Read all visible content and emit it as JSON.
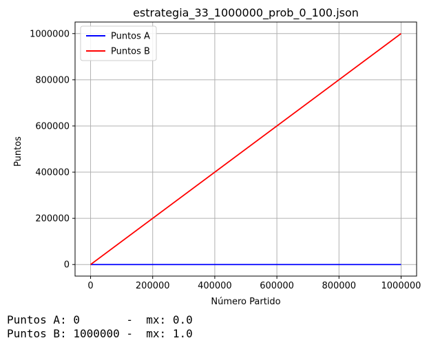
{
  "chart_data": {
    "type": "line",
    "title": "estrategia_33_1000000_prob_0_100.json",
    "xlabel": "Número Partido",
    "ylabel": "Puntos",
    "xlim": [
      -50000,
      1050000
    ],
    "ylim": [
      -50000,
      1050000
    ],
    "xticks": [
      0,
      200000,
      400000,
      600000,
      800000,
      1000000
    ],
    "yticks": [
      0,
      200000,
      400000,
      600000,
      800000,
      1000000
    ],
    "grid": true,
    "legend_position": "top-left",
    "series": [
      {
        "name": "Puntos A",
        "color": "#0000ff",
        "x": [
          0,
          1000000
        ],
        "y": [
          0,
          0
        ]
      },
      {
        "name": "Puntos B",
        "color": "#ff0000",
        "x": [
          0,
          1000000
        ],
        "y": [
          0,
          1000000
        ]
      }
    ]
  },
  "footer": {
    "line1": "Puntos A: 0       -  mx: 0.0",
    "line2": "Puntos B: 1000000 -  mx: 1.0"
  }
}
